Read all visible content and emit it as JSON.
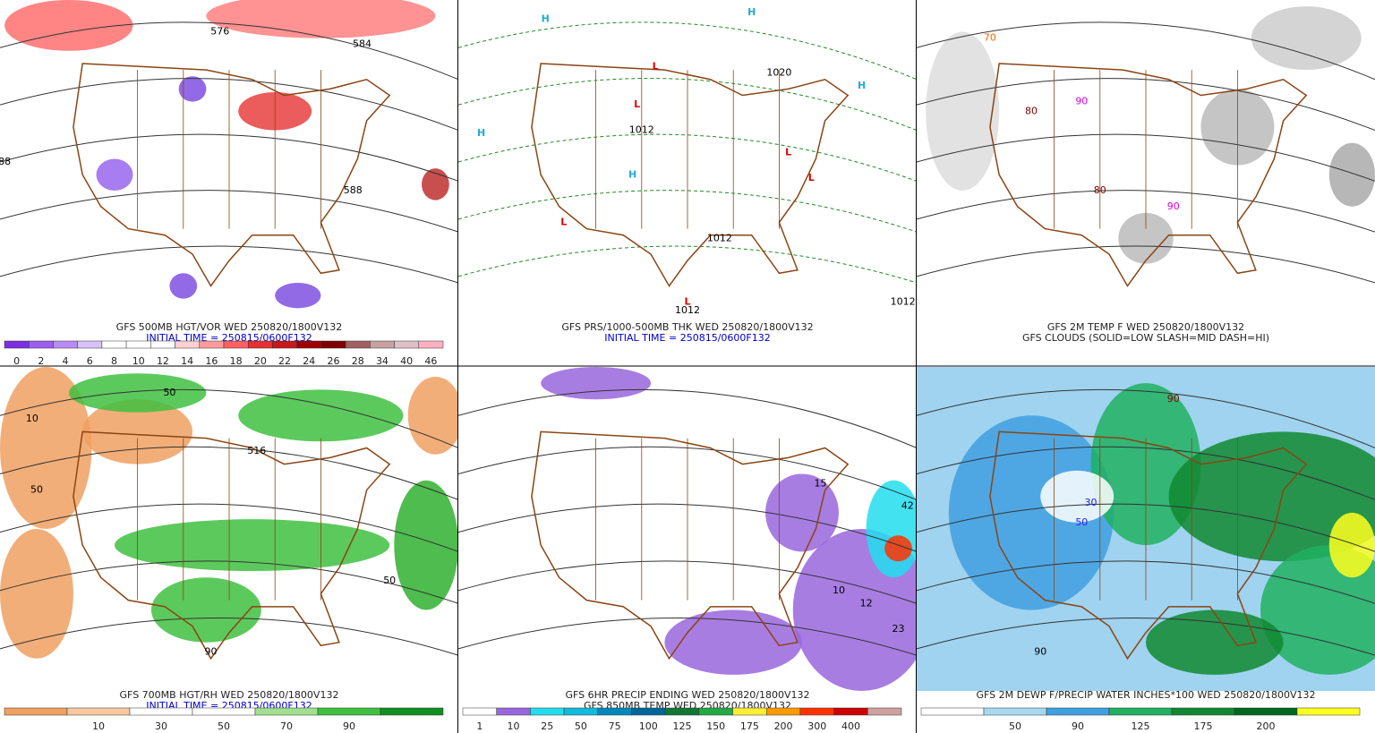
{
  "panels": [
    {
      "caption": [
        "GFS 500MB HGT/VOR WED 250820/1800V132",
        "INITIAL TIME = 250815/0600F132"
      ],
      "colorbar": {
        "labels": [
          0,
          2,
          4,
          6,
          8,
          10,
          12,
          14,
          16,
          18,
          20,
          22,
          24,
          26,
          28,
          34,
          40,
          46
        ],
        "colors": [
          "#7b2fe0",
          "#9d5cf0",
          "#b88cf5",
          "#d7c2fa",
          "#ffffff",
          "#ffffff",
          "#ffffff",
          "#ffd0d0",
          "#ff9a9a",
          "#ff6060",
          "#e83030",
          "#c81818",
          "#a00000",
          "#800000",
          "#a06060",
          "#c8a0a0",
          "#e0c0c8",
          "#ffb0c0"
        ]
      },
      "labels": [
        "576",
        "584",
        "588",
        "88"
      ]
    },
    {
      "caption": [
        "GFS PRS/1000-500MB THK WED 250820/1800V132",
        "INITIAL TIME = 250815/0600F132"
      ],
      "labels": [
        "H",
        "H",
        "H",
        "H",
        "H",
        "L",
        "L",
        "L",
        "L",
        "L",
        "L",
        "1012",
        "1020",
        "1012",
        "1012",
        "1012"
      ]
    },
    {
      "caption": [
        "GFS 2M TEMP F WED 250820/1800V132",
        "GFS CLOUDS (SOLID=LOW SLASH=MID DASH=HI)"
      ],
      "labels": [
        "80",
        "90",
        "70",
        "80",
        "90"
      ]
    },
    {
      "caption": [
        "GFS 700MB HGT/RH WED 250820/1800V132",
        "INITIAL TIME = 250815/0600F132"
      ],
      "colorbar": {
        "labels": [
          10,
          30,
          50,
          70,
          90
        ],
        "colors": [
          "#f0a060",
          "#f8c8a0",
          "#ffffff",
          "#ffffff",
          "#a0e090",
          "#40c040",
          "#109020"
        ]
      },
      "labels": [
        "50",
        "10",
        "50",
        "90",
        "516",
        "50"
      ]
    },
    {
      "caption": [
        "GFS 6HR PRECIP ENDING WED 250820/1800V132",
        "GFS 850MB TEMP WED 250820/1800V132"
      ],
      "colorbar": {
        "labels": [
          1,
          10,
          25,
          50,
          75,
          100,
          125,
          150,
          175,
          200,
          300,
          400
        ],
        "colors": [
          "#ffffff",
          "#9966dd",
          "#22ddee",
          "#11bbdd",
          "#0088bb",
          "#006699",
          "#117733",
          "#22aa44",
          "#ffee33",
          "#ff9900",
          "#ff3300",
          "#cc0000",
          "#d0a0a0"
        ]
      },
      "labels": [
        "15",
        "42",
        "12",
        "23",
        "10"
      ]
    },
    {
      "caption": [
        "GFS 2M DEWP F/PRECIP WATER INCHES*100 WED 250820/1800V132"
      ],
      "colorbar": {
        "labels": [
          50,
          90,
          125,
          175,
          200
        ],
        "colors": [
          "#ffffff",
          "#a8d8f0",
          "#3f9fe0",
          "#20b060",
          "#108830",
          "#006820",
          "#ffff20"
        ]
      },
      "labels": [
        "90",
        "30",
        "50",
        "90"
      ]
    }
  ]
}
